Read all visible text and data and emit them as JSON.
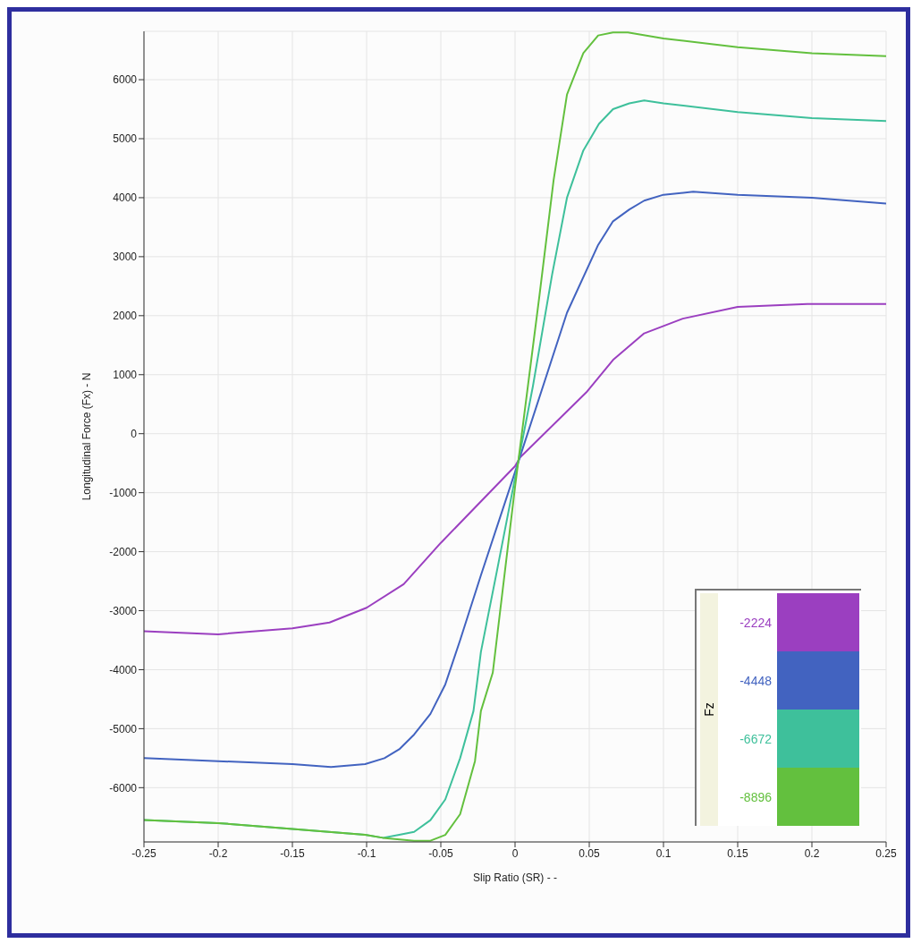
{
  "chart_data": {
    "type": "line",
    "xlabel": "Slip Ratio (SR) - -",
    "ylabel": "Longitudinal Force (Fx) - N",
    "legend_title": "Fz",
    "xlim": [
      -0.25,
      0.25
    ],
    "xticks": [
      -0.25,
      -0.2,
      -0.15,
      -0.1,
      -0.05,
      0,
      0.05,
      0.1,
      0.15,
      0.2,
      0.25
    ],
    "ylim": [
      -6920,
      6820
    ],
    "yticks": [
      -6000,
      -5000,
      -4000,
      -3000,
      -2000,
      -1000,
      0,
      1000,
      2000,
      3000,
      4000,
      5000,
      6000
    ],
    "grid": true,
    "legend": "bottom right",
    "marker": "none",
    "line_style": "solid",
    "series": [
      {
        "name": "-2224",
        "color": "#9b3fc0",
        "x": [
          -0.25,
          -0.2,
          -0.15,
          -0.125,
          -0.1,
          -0.075,
          -0.05,
          0,
          0.0035,
          0.048,
          0.066,
          0.087,
          0.113,
          0.15,
          0.197,
          0.25
        ],
        "values": [
          -3350,
          -3400,
          -3300,
          -3200,
          -2950,
          -2550,
          -1850,
          -550,
          -400,
          700,
          1250,
          1700,
          1950,
          2150,
          2200,
          2200
        ]
      },
      {
        "name": "-4448",
        "color": "#4263c0",
        "x": [
          -0.25,
          -0.2,
          -0.15,
          -0.124,
          -0.101,
          -0.088,
          -0.078,
          -0.068,
          -0.057,
          -0.047,
          -0.037,
          -0.023,
          0,
          0.035,
          0.056,
          0.066,
          0.077,
          0.087,
          0.1,
          0.12,
          0.15,
          0.2,
          0.25
        ],
        "values": [
          -5500,
          -5550,
          -5600,
          -5650,
          -5600,
          -5500,
          -5350,
          -5100,
          -4750,
          -4250,
          -3500,
          -2400,
          -650,
          2050,
          3200,
          3600,
          3800,
          3950,
          4050,
          4100,
          4050,
          4000,
          3900
        ]
      },
      {
        "name": "-6672",
        "color": "#3ec09b",
        "x": [
          -0.25,
          -0.2,
          -0.15,
          -0.101,
          -0.089,
          -0.078,
          -0.068,
          -0.057,
          -0.047,
          -0.037,
          -0.028,
          -0.023,
          -0.012,
          0,
          0.012,
          0.025,
          0.035,
          0.046,
          0.0565,
          0.066,
          0.077,
          0.087,
          0.1,
          0.15,
          0.2,
          0.25
        ],
        "values": [
          -6550,
          -6600,
          -6700,
          -6800,
          -6850,
          -6800,
          -6750,
          -6550,
          -6200,
          -5500,
          -4700,
          -3700,
          -2300,
          -750,
          800,
          2700,
          4000,
          4800,
          5250,
          5500,
          5600,
          5650,
          5600,
          5450,
          5350,
          5300
        ]
      },
      {
        "name": "-8896",
        "color": "#63c03e",
        "x": [
          -0.25,
          -0.2,
          -0.15,
          -0.101,
          -0.089,
          -0.068,
          -0.057,
          -0.047,
          -0.037,
          -0.027,
          -0.023,
          -0.015,
          0,
          0.0165,
          0.026,
          0.035,
          0.046,
          0.056,
          0.066,
          0.076,
          0.1,
          0.15,
          0.2,
          0.25
        ],
        "values": [
          -6550,
          -6600,
          -6700,
          -6800,
          -6850,
          -6900,
          -6900,
          -6800,
          -6450,
          -5550,
          -4700,
          -4050,
          -900,
          2350,
          4300,
          5750,
          6450,
          6750,
          6800,
          6800,
          6700,
          6550,
          6450,
          6400
        ]
      }
    ]
  }
}
